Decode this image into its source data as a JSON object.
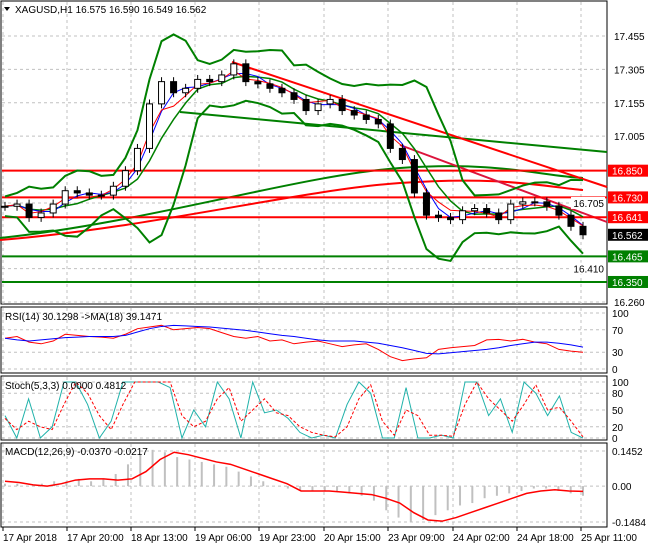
{
  "header": {
    "symbol": "XAGUSD,H1",
    "open": "16.575",
    "high": "16.590",
    "low": "16.549",
    "close": "16.562"
  },
  "chart_data": [
    {
      "type": "candlestick",
      "title": "XAGUSD,H1",
      "yticks": [
        "17.455",
        "17.305",
        "17.155",
        "17.005",
        "16.705",
        "16.410",
        "16.260"
      ],
      "ylim": [
        16.26,
        17.455
      ],
      "closes": [
        16.69,
        16.7,
        16.64,
        16.66,
        16.7,
        16.76,
        16.75,
        16.74,
        16.74,
        16.78,
        16.85,
        16.95,
        17.15,
        17.25,
        17.2,
        17.22,
        17.26,
        17.25,
        17.28,
        17.33,
        17.25,
        17.24,
        17.22,
        17.2,
        17.17,
        17.12,
        17.15,
        17.17,
        17.12,
        17.1,
        17.08,
        17.06,
        16.95,
        16.9,
        16.75,
        16.65,
        16.64,
        16.63,
        16.67,
        16.68,
        16.66,
        16.63,
        16.7,
        16.71,
        16.71,
        16.69,
        16.65,
        16.6,
        16.562
      ],
      "levels": [
        {
          "value": "16.850",
          "color": "#ff0000"
        },
        {
          "value": "16.730",
          "color": "#ff0000"
        },
        {
          "value": "16.641",
          "color": "#ff0000"
        },
        {
          "value": "16.562",
          "color": "#000000"
        },
        {
          "value": "16.465",
          "color": "#008000"
        },
        {
          "value": "16.350",
          "color": "#008000"
        }
      ]
    },
    {
      "type": "line",
      "title": "RSI(14) 30.1298 ->MA(18) 39.1471",
      "yticks": [
        "100",
        "70",
        "30",
        "0"
      ],
      "ylim": [
        0,
        100
      ],
      "series": [
        {
          "color": "#ff0000",
          "values": [
            55,
            58,
            48,
            45,
            50,
            62,
            60,
            58,
            57,
            55,
            62,
            72,
            75,
            78,
            70,
            72,
            74,
            72,
            65,
            58,
            55,
            58,
            50,
            52,
            45,
            48,
            50,
            45,
            40,
            43,
            45,
            35,
            22,
            15,
            18,
            20,
            35,
            38,
            40,
            42,
            52,
            53,
            50,
            53,
            48,
            45,
            35,
            32,
            30
          ]
        },
        {
          "color": "#0000ff",
          "values": [
            55,
            52,
            50,
            52,
            54,
            56,
            57,
            58,
            58,
            58,
            60,
            66,
            72,
            76,
            78,
            77,
            76,
            75,
            73,
            71,
            69,
            66,
            63,
            60,
            58,
            55,
            52,
            50,
            50,
            50,
            48,
            46,
            42,
            38,
            33,
            28,
            27,
            29,
            31,
            33,
            35,
            38,
            42,
            45,
            48,
            48,
            46,
            43,
            39
          ]
        }
      ]
    },
    {
      "type": "line",
      "title": "Stoch(5,3,3) 0.0000 0.4812",
      "yticks": [
        "100",
        "80",
        "50",
        "20",
        "0"
      ],
      "ylim": [
        0,
        100
      ],
      "series": [
        {
          "color": "#20b2aa",
          "values": [
            40,
            0,
            70,
            0,
            20,
            100,
            100,
            60,
            0,
            30,
            100,
            100,
            100,
            100,
            90,
            0,
            50,
            20,
            100,
            70,
            0,
            100,
            45,
            50,
            35,
            10,
            0,
            5,
            0,
            60,
            100,
            80,
            0,
            0,
            90,
            0,
            0,
            5,
            0,
            100,
            100,
            40,
            70,
            10,
            100,
            80,
            40,
            75,
            10,
            0
          ]
        },
        {
          "color": "#ff0000",
          "values": [
            35,
            15,
            30,
            20,
            15,
            60,
            100,
            80,
            40,
            15,
            60,
            100,
            100,
            100,
            100,
            40,
            20,
            30,
            70,
            90,
            30,
            50,
            70,
            45,
            40,
            20,
            10,
            5,
            2,
            20,
            70,
            95,
            30,
            5,
            50,
            40,
            5,
            5,
            3,
            60,
            100,
            70,
            50,
            30,
            60,
            95,
            50,
            55,
            30,
            2
          ]
        }
      ]
    },
    {
      "type": "bar",
      "title": "MACD(12,26,9) -0.0370 -0.0217",
      "yticks": [
        "0.1452",
        "0.00",
        "-0.1484"
      ],
      "ylim": [
        -0.1484,
        0.1452
      ],
      "series": [
        {
          "name": "histogram",
          "color": "#c0c0c0",
          "values": [
            0.01,
            0.01,
            0.0,
            0.01,
            0.02,
            0.02,
            0.03,
            0.02,
            0.03,
            0.05,
            0.09,
            0.13,
            0.15,
            0.14,
            0.12,
            0.11,
            0.1,
            0.09,
            0.08,
            0.06,
            0.04,
            0.02,
            0.0,
            -0.01,
            -0.02,
            -0.02,
            -0.02,
            -0.02,
            -0.03,
            -0.04,
            -0.06,
            -0.1,
            -0.13,
            -0.15,
            -0.14,
            -0.12,
            -0.1,
            -0.08,
            -0.07,
            -0.05,
            -0.04,
            -0.03,
            -0.02,
            -0.01,
            -0.01,
            -0.02,
            -0.03,
            -0.04
          ]
        },
        {
          "name": "signal",
          "color": "#ff0000",
          "values": [
            0.02,
            0.015,
            0.005,
            0.0,
            0.01,
            0.025,
            0.03,
            0.03,
            0.025,
            0.03,
            0.06,
            0.11,
            0.14,
            0.13,
            0.115,
            0.1,
            0.09,
            0.07,
            0.05,
            0.03,
            0.01,
            -0.02,
            -0.02,
            -0.02,
            -0.025,
            -0.03,
            -0.035,
            -0.05,
            -0.07,
            -0.11,
            -0.14,
            -0.145,
            -0.13,
            -0.11,
            -0.09,
            -0.07,
            -0.05,
            -0.03,
            -0.02,
            -0.015,
            -0.02,
            -0.022
          ]
        }
      ]
    }
  ],
  "xaxis": {
    "labels": [
      "17 Apr 2018",
      "17 Apr 20:00",
      "18 Apr 13:00",
      "19 Apr 06:00",
      "19 Apr 23:00",
      "20 Apr 15:00",
      "23 Apr 09:00",
      "24 Apr 02:00",
      "24 Apr 18:00",
      "25 Apr 11:00"
    ]
  }
}
